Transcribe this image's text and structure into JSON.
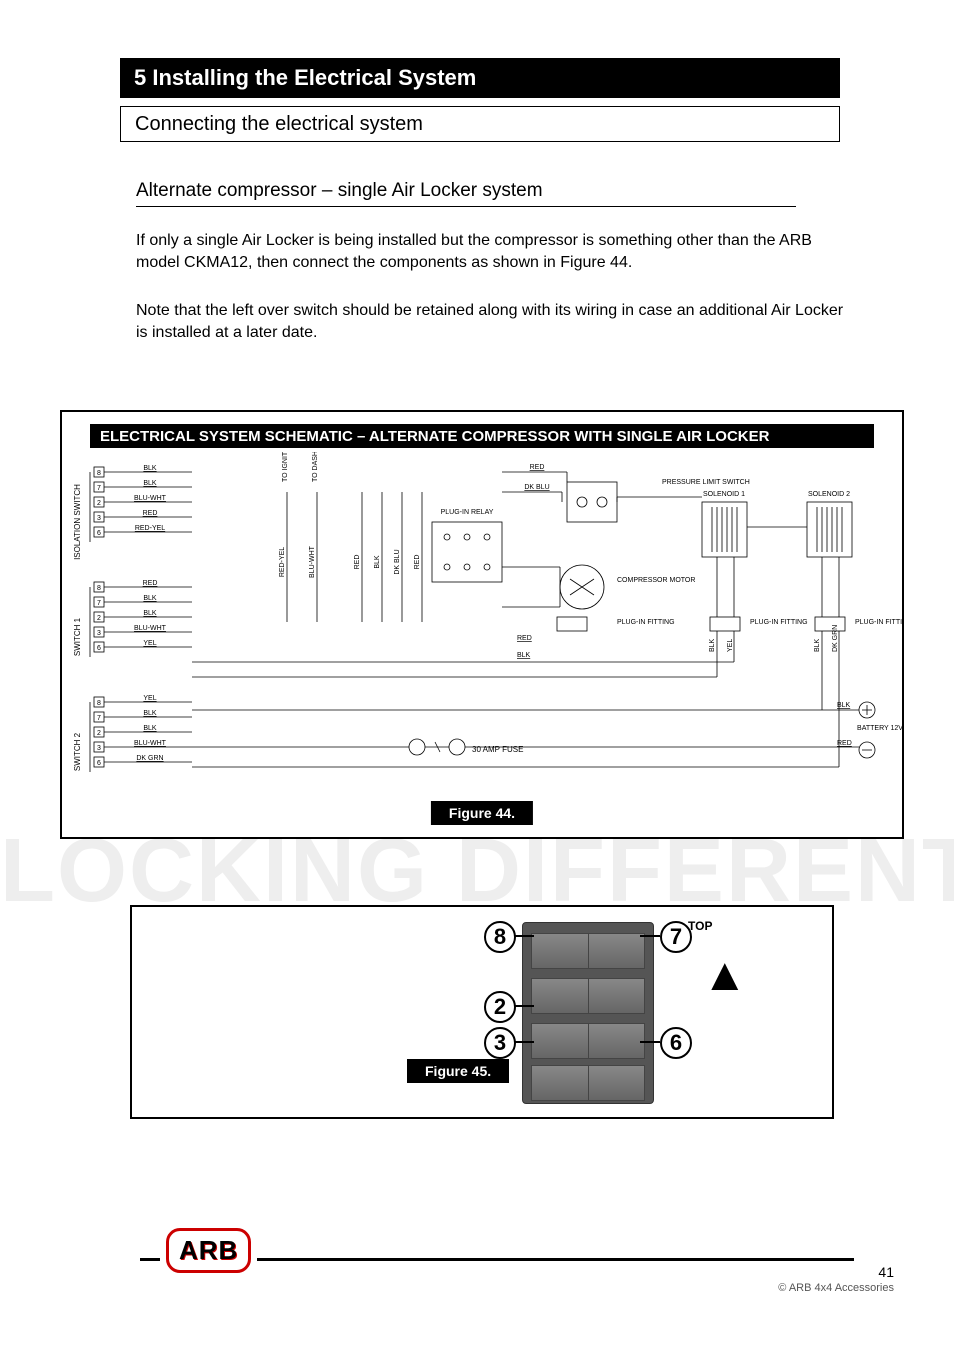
{
  "header": {
    "section": "5  Installing the Electrical System"
  },
  "subtitle": "Connecting the electrical system",
  "underline": "Alternate compressor – single Air Locker system",
  "para1": "If only a single Air Locker is being installed but the compressor is something other than the ARB model CKMA12, then connect the components as shown in Figure 44.",
  "para2": "Note that the left over switch should be retained along with its wiring in case an additional Air Locker is installed at a later date.",
  "diagram": {
    "title": "ELECTRICAL SYSTEM SCHEMATIC – ALTERNATE COMPRESSOR WITH SINGLE AIR LOCKER",
    "figure": "Figure 44.",
    "left_groups": [
      {
        "name": "ISOLATION SWITCH",
        "pins": [
          {
            "n": "8",
            "lbl": "BLK"
          },
          {
            "n": "7",
            "lbl": "BLK"
          },
          {
            "n": "2",
            "lbl": "BLU-WHT"
          },
          {
            "n": "3",
            "lbl": "RED"
          },
          {
            "n": "6",
            "lbl": "RED-YEL"
          }
        ]
      },
      {
        "name": "SWITCH 1",
        "pins": [
          {
            "n": "8",
            "lbl": "RED"
          },
          {
            "n": "7",
            "lbl": "BLK"
          },
          {
            "n": "2",
            "lbl": "BLK"
          },
          {
            "n": "3",
            "lbl": "BLU-WHT"
          },
          {
            "n": "6",
            "lbl": "YEL"
          }
        ]
      },
      {
        "name": "SWITCH 2",
        "pins": [
          {
            "n": "8",
            "lbl": "YEL"
          },
          {
            "n": "7",
            "lbl": "BLK"
          },
          {
            "n": "2",
            "lbl": "BLK"
          },
          {
            "n": "3",
            "lbl": "BLU-WHT"
          },
          {
            "n": "6",
            "lbl": "DK GRN"
          }
        ]
      }
    ],
    "mid_verticals": [
      "RED-YEL",
      "BLU-WHT",
      "RED",
      "BLK",
      "DK BLU",
      "RED"
    ],
    "mid_notes": [
      "TO IGNITION",
      "TO DASH ILLUMINATION",
      "PLUG-IN RELAY"
    ],
    "right_top": [
      "RED",
      "DK BLU",
      "PRESSURE LIMIT SWITCH",
      "SOLENOID 1",
      "SOLENOID 2"
    ],
    "right_mid": [
      "COMPRESSOR MOTOR",
      "PLUG-IN FITTING",
      "PLUG-IN FITTING",
      "PLUG-IN FITTING"
    ],
    "right_low": [
      "RED",
      "BLK",
      "BLK",
      "YEL",
      "BLK",
      "DK GRN"
    ],
    "battery": [
      "BLK",
      "BATTERY 12V",
      "RED"
    ],
    "fuse": "30 AMP FUSE"
  },
  "photo": {
    "figure": "Figure 45.",
    "callouts": {
      "tl": "8",
      "tr": "7",
      "ml": "2",
      "bl": "3",
      "br": "6"
    },
    "top": "TOP"
  },
  "footer": {
    "page": "41",
    "copyright": "© ARB 4x4 Accessories"
  },
  "watermark": "LOCKING DIFFERENTIALS"
}
